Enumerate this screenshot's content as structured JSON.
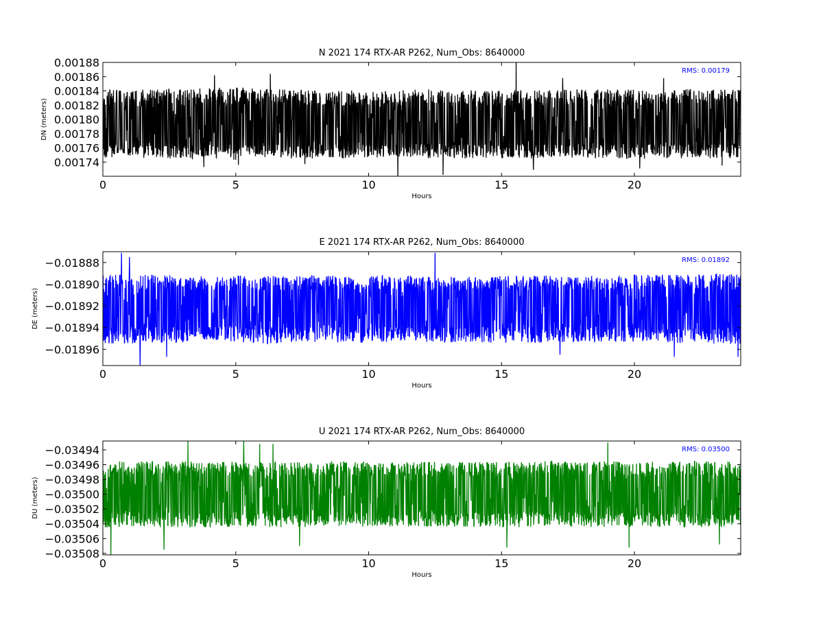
{
  "chart_data": [
    {
      "type": "line",
      "title": "N 2021 174 RTX-AR  P262, Num_Obs: 8640000",
      "xlabel": "Hours",
      "ylabel": "DN (meters)",
      "xlim": [
        0,
        24
      ],
      "ylim": [
        0.00172,
        0.00188
      ],
      "xticks": [
        0,
        5,
        10,
        15,
        20
      ],
      "xtick_labels": [
        "0",
        "5",
        "10",
        "15",
        "20"
      ],
      "yticks": [
        0.00174,
        0.00176,
        0.00178,
        0.0018,
        0.00182,
        0.00184,
        0.00186,
        0.00188
      ],
      "ytick_labels": [
        "0.00174",
        "0.00176",
        "0.00178",
        "0.00180",
        "0.00182",
        "0.00184",
        "0.00186",
        "0.00188"
      ],
      "color": "#000000",
      "rms_label": "RMS:  0.00179",
      "rms_color": "#0000ff",
      "series": [
        {
          "x": [
            0,
            1,
            2,
            3,
            4,
            5,
            6,
            7,
            8,
            9,
            10,
            11,
            12,
            13,
            14,
            15,
            16,
            17,
            18,
            19,
            20,
            21,
            22,
            23,
            24
          ],
          "mean": 0.00179,
          "envelope_low": [
            0.001745,
            0.001745,
            0.001745,
            0.001745,
            0.001745,
            0.001743,
            0.001745,
            0.001745,
            0.001745,
            0.001745,
            0.001745,
            0.001747,
            0.001745,
            0.001745,
            0.001745,
            0.001745,
            0.001745,
            0.001747,
            0.001745,
            0.001745,
            0.001744,
            0.001745,
            0.001745,
            0.001745,
            0.001745
          ],
          "envelope_high": [
            0.001841,
            0.001842,
            0.001842,
            0.001843,
            0.001844,
            0.001846,
            0.001844,
            0.001842,
            0.001841,
            0.001841,
            0.001841,
            0.00184,
            0.001843,
            0.001841,
            0.001841,
            0.001841,
            0.001841,
            0.001842,
            0.001842,
            0.001842,
            0.001842,
            0.001841,
            0.001843,
            0.001842,
            0.001842
          ],
          "spikes": [
            [
              3.8,
              0.001733
            ],
            [
              4.2,
              0.001862
            ],
            [
              5.1,
              0.001736
            ],
            [
              6.3,
              0.001864
            ],
            [
              7.6,
              0.001737
            ],
            [
              11.1,
              0.00172
            ],
            [
              12.8,
              0.001722
            ],
            [
              15.55,
              0.00188
            ],
            [
              16.2,
              0.001729
            ],
            [
              17.3,
              0.001858
            ],
            [
              20.2,
              0.001731
            ],
            [
              21.1,
              0.001858
            ],
            [
              23.3,
              0.001735
            ]
          ]
        }
      ]
    },
    {
      "type": "line",
      "title": "E 2021 174 RTX-AR  P262, Num_Obs: 8640000",
      "xlabel": "Hours",
      "ylabel": "DE (meters)",
      "xlim": [
        0,
        24
      ],
      "ylim": [
        -0.018975,
        -0.01887
      ],
      "xticks": [
        0,
        5,
        10,
        15,
        20
      ],
      "xtick_labels": [
        "0",
        "5",
        "10",
        "15",
        "20"
      ],
      "yticks": [
        -0.01896,
        -0.01894,
        -0.01892,
        -0.0189,
        -0.01888
      ],
      "ytick_labels": [
        "−0.01896",
        "−0.01894",
        "−0.01892",
        "−0.01890",
        "−0.01888"
      ],
      "color": "#0000ff",
      "rms_label": "RMS:  0.01892",
      "rms_color": "#0000ff",
      "series": [
        {
          "x": [
            0,
            1,
            2,
            3,
            4,
            5,
            6,
            7,
            8,
            9,
            10,
            11,
            12,
            13,
            14,
            15,
            16,
            17,
            18,
            19,
            20,
            21,
            22,
            23,
            24
          ],
          "mean": -0.018922,
          "envelope_low": [
            -0.018955,
            -0.018955,
            -0.018954,
            -0.018954,
            -0.018951,
            -0.018953,
            -0.018955,
            -0.018954,
            -0.018954,
            -0.018954,
            -0.018954,
            -0.018953,
            -0.018953,
            -0.018954,
            -0.018954,
            -0.018954,
            -0.018954,
            -0.018954,
            -0.018954,
            -0.018954,
            -0.018954,
            -0.018954,
            -0.018955,
            -0.018955,
            -0.018955
          ],
          "envelope_high": [
            -0.018891,
            -0.01889,
            -0.018891,
            -0.018892,
            -0.018893,
            -0.018892,
            -0.018892,
            -0.018892,
            -0.018892,
            -0.018892,
            -0.018892,
            -0.018891,
            -0.018893,
            -0.018893,
            -0.018893,
            -0.018892,
            -0.018892,
            -0.018892,
            -0.018892,
            -0.018892,
            -0.018891,
            -0.018891,
            -0.018891,
            -0.01889,
            -0.01889
          ],
          "spikes": [
            [
              0.7,
              -0.018871
            ],
            [
              1.0,
              -0.018875
            ],
            [
              1.4,
              -0.018975
            ],
            [
              2.4,
              -0.018967
            ],
            [
              12.5,
              -0.018871
            ],
            [
              17.2,
              -0.018965
            ],
            [
              21.5,
              -0.018967
            ],
            [
              23.9,
              -0.018967
            ]
          ]
        }
      ]
    },
    {
      "type": "line",
      "title": "U 2021 174 RTX-AR  P262, Num_Obs: 8640000",
      "xlabel": "Hours",
      "ylabel": "DU (meters)",
      "xlim": [
        0,
        24
      ],
      "ylim": [
        -0.035082,
        -0.034928
      ],
      "xticks": [
        0,
        5,
        10,
        15,
        20
      ],
      "xtick_labels": [
        "0",
        "5",
        "10",
        "15",
        "20"
      ],
      "yticks": [
        -0.03508,
        -0.03506,
        -0.03504,
        -0.03502,
        -0.035,
        -0.03498,
        -0.03496,
        -0.03494
      ],
      "ytick_labels": [
        "−0.03508",
        "−0.03506",
        "−0.03504",
        "−0.03502",
        "−0.03500",
        "−0.03498",
        "−0.03496",
        "−0.03494"
      ],
      "color": "#008000",
      "rms_label": "RMS:  0.03500",
      "rms_color": "#0000ff",
      "series": [
        {
          "x": [
            0,
            1,
            2,
            3,
            4,
            5,
            6,
            7,
            8,
            9,
            10,
            11,
            12,
            13,
            14,
            15,
            16,
            17,
            18,
            19,
            20,
            21,
            22,
            23,
            24
          ],
          "mean": -0.035,
          "envelope_low": [
            -0.035045,
            -0.035044,
            -0.035045,
            -0.035045,
            -0.035045,
            -0.035044,
            -0.035045,
            -0.035045,
            -0.035044,
            -0.035043,
            -0.035044,
            -0.035044,
            -0.035044,
            -0.035044,
            -0.035044,
            -0.035045,
            -0.035045,
            -0.035045,
            -0.035044,
            -0.035045,
            -0.035045,
            -0.035044,
            -0.035045,
            -0.035045,
            -0.035046
          ],
          "envelope_high": [
            -0.034955,
            -0.034956,
            -0.034955,
            -0.034955,
            -0.034956,
            -0.034955,
            -0.034955,
            -0.034956,
            -0.034956,
            -0.034955,
            -0.034956,
            -0.034956,
            -0.034956,
            -0.034956,
            -0.034956,
            -0.034956,
            -0.034955,
            -0.034955,
            -0.034956,
            -0.034955,
            -0.034956,
            -0.034956,
            -0.034955,
            -0.034955,
            -0.034955
          ],
          "spikes": [
            [
              0.3,
              -0.035082
            ],
            [
              2.3,
              -0.035075
            ],
            [
              3.2,
              -0.034928
            ],
            [
              5.3,
              -0.034928
            ],
            [
              5.9,
              -0.034932
            ],
            [
              6.4,
              -0.034932
            ],
            [
              7.4,
              -0.03507
            ],
            [
              15.2,
              -0.035072
            ],
            [
              19.0,
              -0.03493
            ],
            [
              19.8,
              -0.035072
            ],
            [
              23.2,
              -0.035068
            ]
          ]
        }
      ]
    }
  ]
}
